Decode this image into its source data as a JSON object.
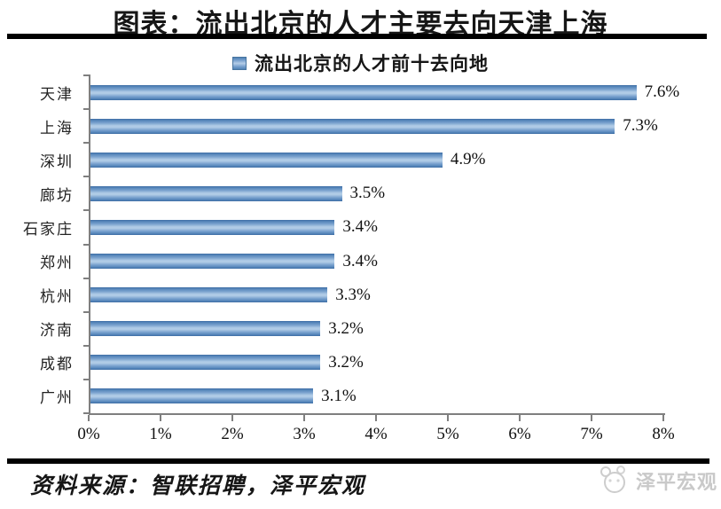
{
  "header": {
    "title": "图表：流出北京的人才主要去向天津上海"
  },
  "legend": {
    "label": "流出北京的人才前十去向地"
  },
  "chart_data": {
    "type": "bar",
    "orientation": "horizontal",
    "title": "流出北京的人才前十去向地",
    "categories": [
      "天津",
      "上海",
      "深圳",
      "廊坊",
      "石家庄",
      "郑州",
      "杭州",
      "济南",
      "成都",
      "广州"
    ],
    "values": [
      7.6,
      7.3,
      4.9,
      3.5,
      3.4,
      3.4,
      3.3,
      3.2,
      3.2,
      3.1
    ],
    "value_labels": [
      "7.6%",
      "7.3%",
      "4.9%",
      "3.5%",
      "3.4%",
      "3.4%",
      "3.3%",
      "3.2%",
      "3.2%",
      "3.1%"
    ],
    "xlabel": "",
    "ylabel": "",
    "xlim": [
      0,
      8
    ],
    "x_ticks": [
      "0%",
      "1%",
      "2%",
      "3%",
      "4%",
      "5%",
      "6%",
      "7%",
      "8%"
    ],
    "grid": false,
    "legend_position": "top",
    "bar_color": "#4f81bd",
    "bar_highlight_color": "#b0cbe6"
  },
  "footer": {
    "source": "资料来源：智联招聘，泽平宏观",
    "brand": "泽平宏观"
  },
  "colors": {
    "axis": "#7f7f7f",
    "rule": "#000000",
    "brand_gray": "#c9c9c9",
    "text": "#161616"
  }
}
